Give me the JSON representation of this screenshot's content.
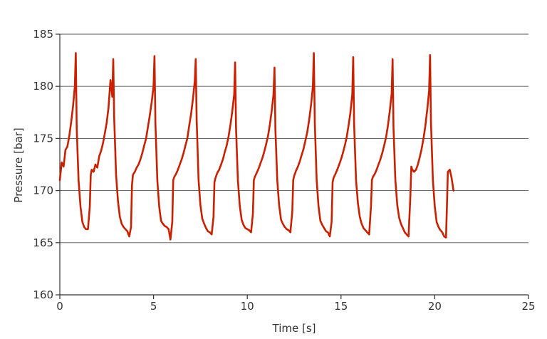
{
  "chart_data": {
    "type": "line",
    "title": "",
    "xlabel": "Time [s]",
    "ylabel": "Pressure [bar]",
    "xlim": [
      0,
      25
    ],
    "ylim": [
      160,
      185
    ],
    "x_ticks": [
      0,
      5,
      10,
      15,
      20,
      25
    ],
    "y_ticks": [
      160,
      165,
      170,
      175,
      180,
      185
    ],
    "grid": "horizontal",
    "legend": "none",
    "series": [
      {
        "color": "#cc1f00",
        "x": [
          0,
          0.1,
          0.2,
          0.3,
          0.4,
          0.5,
          0.6,
          0.7,
          0.8,
          0.85,
          0.9,
          1.0,
          1.1,
          1.2,
          1.3,
          1.4,
          1.5,
          1.6,
          1.65,
          1.7,
          1.8,
          1.9,
          2.0,
          2.1,
          2.2,
          2.3,
          2.4,
          2.5,
          2.6,
          2.7,
          2.8,
          2.85,
          2.9,
          3.0,
          3.1,
          3.2,
          3.3,
          3.4,
          3.5,
          3.6,
          3.7,
          3.8,
          3.85,
          3.9,
          4.0,
          4.1,
          4.2,
          4.3,
          4.4,
          4.5,
          4.6,
          4.7,
          4.8,
          4.9,
          5.0,
          5.05,
          5.1,
          5.2,
          5.3,
          5.4,
          5.5,
          5.6,
          5.7,
          5.8,
          5.9,
          6.0,
          6.05,
          6.1,
          6.2,
          6.3,
          6.4,
          6.5,
          6.6,
          6.7,
          6.8,
          6.9,
          7.0,
          7.1,
          7.2,
          7.25,
          7.3,
          7.4,
          7.5,
          7.6,
          7.7,
          7.8,
          7.9,
          8.0,
          8.1,
          8.2,
          8.25,
          8.3,
          8.4,
          8.5,
          8.6,
          8.7,
          8.8,
          8.9,
          9.0,
          9.1,
          9.2,
          9.3,
          9.35,
          9.4,
          9.5,
          9.6,
          9.7,
          9.8,
          9.9,
          10.0,
          10.1,
          10.2,
          10.3,
          10.35,
          10.4,
          10.5,
          10.6,
          10.7,
          10.8,
          10.9,
          11.0,
          11.1,
          11.2,
          11.3,
          11.4,
          11.45,
          11.5,
          11.6,
          11.7,
          11.8,
          11.9,
          12.0,
          12.1,
          12.2,
          12.3,
          12.4,
          12.45,
          12.5,
          12.6,
          12.7,
          12.8,
          12.9,
          13.0,
          13.1,
          13.2,
          13.3,
          13.4,
          13.5,
          13.55,
          13.6,
          13.7,
          13.8,
          13.9,
          14.0,
          14.1,
          14.2,
          14.3,
          14.4,
          14.5,
          14.55,
          14.6,
          14.7,
          14.8,
          14.9,
          15.0,
          15.1,
          15.2,
          15.3,
          15.4,
          15.5,
          15.6,
          15.65,
          15.7,
          15.8,
          15.9,
          16.0,
          16.1,
          16.2,
          16.3,
          16.4,
          16.5,
          16.6,
          16.65,
          16.7,
          16.8,
          16.9,
          17.0,
          17.1,
          17.2,
          17.3,
          17.4,
          17.5,
          17.6,
          17.7,
          17.75,
          17.8,
          17.9,
          18.0,
          18.1,
          18.2,
          18.3,
          18.4,
          18.5,
          18.6,
          18.7,
          18.75,
          18.8,
          18.9,
          19.0,
          19.1,
          19.2,
          19.3,
          19.4,
          19.5,
          19.6,
          19.7,
          19.75,
          19.8,
          19.9,
          20.0,
          20.1,
          20.2,
          20.3,
          20.4,
          20.5,
          20.6,
          20.65,
          20.7,
          20.8,
          20.9,
          21.0
        ],
        "y": [
          171.0,
          172.7,
          172.3,
          173.9,
          174.2,
          175.2,
          176.5,
          178.0,
          180.0,
          183.2,
          176.0,
          171.0,
          168.5,
          167.0,
          166.5,
          166.3,
          166.3,
          168.5,
          171.5,
          172.0,
          171.8,
          172.5,
          172.2,
          173.3,
          173.8,
          174.5,
          175.5,
          176.5,
          178.0,
          180.6,
          179.0,
          182.6,
          177.0,
          171.5,
          169.0,
          167.5,
          166.8,
          166.5,
          166.3,
          166.1,
          165.6,
          166.5,
          170.5,
          171.5,
          171.8,
          172.2,
          172.5,
          173.0,
          173.6,
          174.3,
          175.0,
          176.1,
          177.2,
          178.5,
          180.0,
          182.9,
          176.5,
          171.0,
          168.5,
          167.1,
          166.8,
          166.6,
          166.5,
          166.3,
          165.3,
          167.0,
          171.0,
          171.3,
          171.6,
          172.0,
          172.5,
          173.0,
          173.6,
          174.3,
          175.0,
          176.2,
          177.3,
          178.8,
          180.5,
          182.6,
          176.8,
          171.0,
          168.6,
          167.3,
          166.8,
          166.4,
          166.1,
          166.0,
          165.8,
          167.5,
          170.8,
          171.2,
          171.7,
          172.0,
          172.5,
          173.0,
          173.7,
          174.3,
          175.2,
          176.3,
          177.6,
          179.2,
          182.3,
          176.0,
          171.0,
          168.5,
          167.2,
          166.7,
          166.4,
          166.3,
          166.2,
          166.0,
          167.8,
          171.0,
          171.3,
          171.7,
          172.1,
          172.6,
          173.1,
          173.7,
          174.4,
          175.2,
          176.3,
          177.6,
          179.2,
          181.8,
          175.8,
          171.0,
          168.6,
          167.2,
          166.8,
          166.5,
          166.3,
          166.2,
          166.0,
          168.0,
          171.0,
          171.4,
          171.9,
          172.3,
          172.8,
          173.4,
          174.0,
          174.8,
          175.6,
          176.8,
          178.2,
          180.0,
          183.2,
          176.5,
          171.0,
          168.5,
          167.1,
          166.7,
          166.4,
          166.1,
          166.0,
          165.6,
          167.0,
          170.8,
          171.2,
          171.6,
          172.0,
          172.5,
          173.0,
          173.6,
          174.3,
          175.1,
          176.2,
          177.5,
          179.2,
          182.8,
          176.3,
          171.0,
          168.8,
          167.5,
          166.8,
          166.4,
          166.2,
          166.0,
          165.8,
          168.5,
          171.0,
          171.3,
          171.6,
          172.0,
          172.5,
          173.0,
          173.6,
          174.3,
          175.1,
          176.2,
          177.6,
          179.3,
          182.6,
          176.0,
          171.0,
          168.6,
          167.4,
          166.8,
          166.4,
          166.0,
          165.8,
          165.6,
          169.5,
          172.3,
          172.0,
          171.8,
          172.0,
          172.5,
          173.2,
          174.0,
          175.0,
          176.2,
          177.8,
          179.6,
          183.0,
          176.5,
          171.0,
          168.5,
          167.0,
          166.5,
          166.2,
          166.0,
          165.6,
          165.5,
          168.5,
          171.8,
          172.0,
          171.2,
          170.0
        ]
      }
    ]
  }
}
